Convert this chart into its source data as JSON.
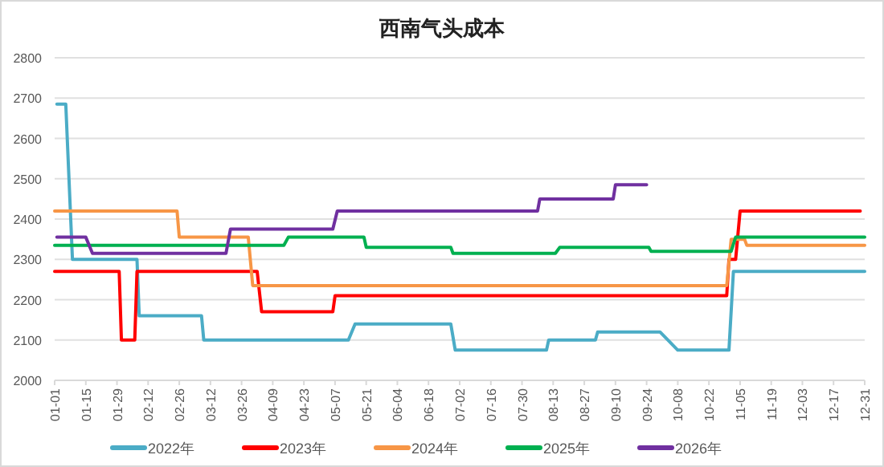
{
  "chart_data": {
    "type": "line",
    "title": "西南气头成本",
    "xlim": [
      "--01-01",
      "--12-31"
    ],
    "xticks": [
      {
        "value": "--01-01",
        "label": "01-01"
      },
      {
        "value": "--01-15",
        "label": "01-15"
      },
      {
        "value": "--01-29",
        "label": "01-29"
      },
      {
        "value": "--02-12",
        "label": "02-12"
      },
      {
        "value": "--02-26",
        "label": "02-26"
      },
      {
        "value": "--03-12",
        "label": "03-12"
      },
      {
        "value": "--03-26",
        "label": "03-26"
      },
      {
        "value": "--04-09",
        "label": "04-09"
      },
      {
        "value": "--04-23",
        "label": "04-23"
      },
      {
        "value": "--05-07",
        "label": "05-07"
      },
      {
        "value": "--05-21",
        "label": "05-21"
      },
      {
        "value": "--06-04",
        "label": "06-04"
      },
      {
        "value": "--06-18",
        "label": "06-18"
      },
      {
        "value": "--07-02",
        "label": "07-02"
      },
      {
        "value": "--07-16",
        "label": "07-16"
      },
      {
        "value": "--07-30",
        "label": "07-30"
      },
      {
        "value": "--08-13",
        "label": "08-13"
      },
      {
        "value": "--08-27",
        "label": "08-27"
      },
      {
        "value": "--09-10",
        "label": "09-10"
      },
      {
        "value": "--09-24",
        "label": "09-24"
      },
      {
        "value": "--10-08",
        "label": "10-08"
      },
      {
        "value": "--10-22",
        "label": "10-22"
      },
      {
        "value": "--11-05",
        "label": "11-05"
      },
      {
        "value": "--11-19",
        "label": "11-19"
      },
      {
        "value": "--12-03",
        "label": "12-03"
      },
      {
        "value": "--12-17",
        "label": "12-17"
      },
      {
        "value": "--12-31",
        "label": "12-31"
      }
    ],
    "ylim": [
      2000,
      2800
    ],
    "yticks": [
      2000,
      2100,
      2200,
      2300,
      2400,
      2500,
      2600,
      2700,
      2800
    ],
    "grid": "y",
    "legend": "bottom",
    "series": [
      {
        "name": "2022年",
        "color": "#4bacc6",
        "x": [
          "--01-02",
          "--01-06",
          "--01-09",
          "--02-07",
          "--02-08",
          "--03-08",
          "--03-09",
          "--05-13",
          "--05-16",
          "--06-28",
          "--06-30",
          "--08-10",
          "--08-11",
          "--09-01",
          "--09-02",
          "--09-30",
          "--10-08",
          "--10-31",
          "--11-02",
          "--12-31"
        ],
        "values": [
          2685,
          2685,
          2300,
          2300,
          2160,
          2160,
          2100,
          2100,
          2140,
          2140,
          2075,
          2075,
          2100,
          2100,
          2120,
          2120,
          2075,
          2075,
          2270,
          2270
        ]
      },
      {
        "name": "2023年",
        "color": "#ff0000",
        "x": [
          "--01-01",
          "--01-30",
          "--01-31",
          "--02-06",
          "--02-07",
          "--04-02",
          "--04-04",
          "--05-06",
          "--05-07",
          "--10-30",
          "--10-31",
          "--11-03",
          "--11-05",
          "--12-29"
        ],
        "values": [
          2270,
          2270,
          2100,
          2100,
          2270,
          2270,
          2170,
          2170,
          2210,
          2210,
          2300,
          2300,
          2420,
          2420
        ]
      },
      {
        "name": "2024年",
        "color": "#f79646",
        "x": [
          "--01-01",
          "--02-25",
          "--02-26",
          "--03-29",
          "--03-31",
          "--10-30",
          "--11-01",
          "--11-07",
          "--11-08",
          "--12-31"
        ],
        "values": [
          2420,
          2420,
          2355,
          2355,
          2235,
          2235,
          2350,
          2350,
          2335,
          2335
        ]
      },
      {
        "name": "2025年",
        "color": "#00b050",
        "x": [
          "--01-01",
          "--04-14",
          "--04-16",
          "--05-20",
          "--05-21",
          "--06-28",
          "--06-29",
          "--08-14",
          "--08-16",
          "--09-25",
          "--09-26",
          "--11-01",
          "--11-03",
          "--12-31"
        ],
        "values": [
          2335,
          2335,
          2355,
          2355,
          2330,
          2330,
          2315,
          2315,
          2330,
          2330,
          2320,
          2320,
          2355,
          2355
        ]
      },
      {
        "name": "2026年",
        "color": "#7030a0",
        "x": [
          "--01-02",
          "--01-15",
          "--01-18",
          "--03-19",
          "--03-21",
          "--05-06",
          "--05-08",
          "--08-06",
          "--08-07",
          "--09-09",
          "--09-10",
          "--09-24"
        ],
        "values": [
          2355,
          2355,
          2315,
          2315,
          2375,
          2375,
          2420,
          2420,
          2450,
          2450,
          2485,
          2485
        ]
      }
    ]
  }
}
